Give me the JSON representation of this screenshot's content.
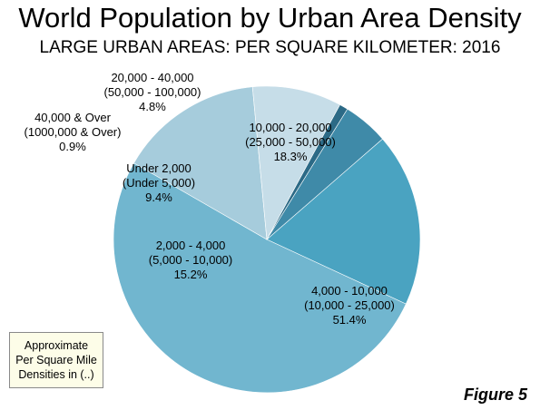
{
  "chart_data": {
    "type": "pie",
    "title": "World Population by Urban Area Density",
    "subtitle": "LARGE URBAN AREAS: PER SQUARE KILOMETER: 2016",
    "slices": [
      {
        "label": "10,000 - 20,000",
        "sublabel": "(25,000 - 50,000)",
        "pct_label": "18.3%",
        "value": 18.3,
        "color": "#4aa3c1"
      },
      {
        "label": "4,000 - 10,000",
        "sublabel": "(10,000 - 25,000)",
        "pct_label": "51.4%",
        "value": 51.4,
        "color": "#71b6cf"
      },
      {
        "label": "2,000 - 4,000",
        "sublabel": "(5,000 - 10,000)",
        "pct_label": "15.2%",
        "value": 15.2,
        "color": "#a6ccdc"
      },
      {
        "label": "Under 2,000",
        "sublabel": "(Under 5,000)",
        "pct_label": "9.4%",
        "value": 9.4,
        "color": "#c6dde8"
      },
      {
        "label": "40,000 & Over",
        "sublabel": "(1000,000 & Over)",
        "pct_label": "0.9%",
        "value": 0.9,
        "color": "#2c6a86"
      },
      {
        "label": "20,000 - 40,000",
        "sublabel": "(50,000 - 100,000)",
        "pct_label": "4.8%",
        "value": 4.8,
        "color": "#3f8aa8"
      }
    ]
  },
  "note": {
    "line1": "Approximate",
    "line2": "Per Square Mile",
    "line3": "Densities in (..)"
  },
  "figure_label": "Figure 5"
}
